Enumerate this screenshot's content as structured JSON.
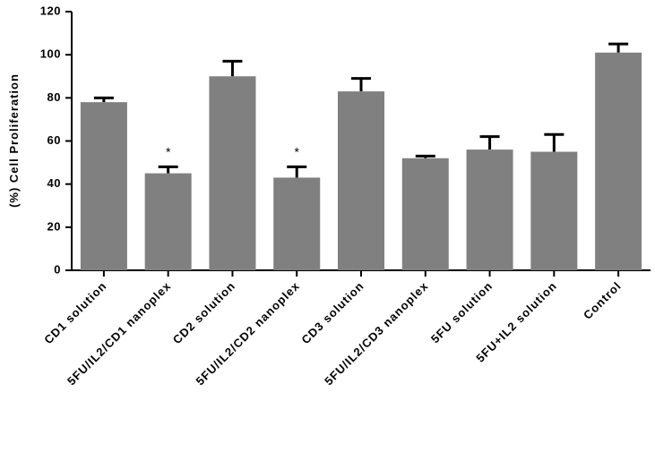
{
  "chart_data": {
    "type": "bar",
    "y_label": "(%) Cell Proliferation",
    "categories": [
      "CD1 solution",
      "5FU/IL2/CD1 nanoplex",
      "CD2 solution",
      "5FU/IL2/CD2 nanoplex",
      "CD3 solution",
      "5FU/IL2/CD3 nanoplex",
      "5FU solution",
      "5FU+IL2 solution",
      "Control"
    ],
    "values": [
      78,
      45,
      90,
      43,
      83,
      52,
      56,
      55,
      101
    ],
    "errors": [
      2,
      3,
      7,
      5,
      6,
      1,
      6,
      8,
      4
    ],
    "annotations": [
      null,
      "*",
      null,
      "*",
      null,
      null,
      null,
      null,
      null
    ],
    "color": "#808080",
    "error_color": "#000000",
    "ylim": [
      0,
      120
    ],
    "yticks": [
      0,
      20,
      40,
      60,
      80,
      100,
      120
    ]
  }
}
